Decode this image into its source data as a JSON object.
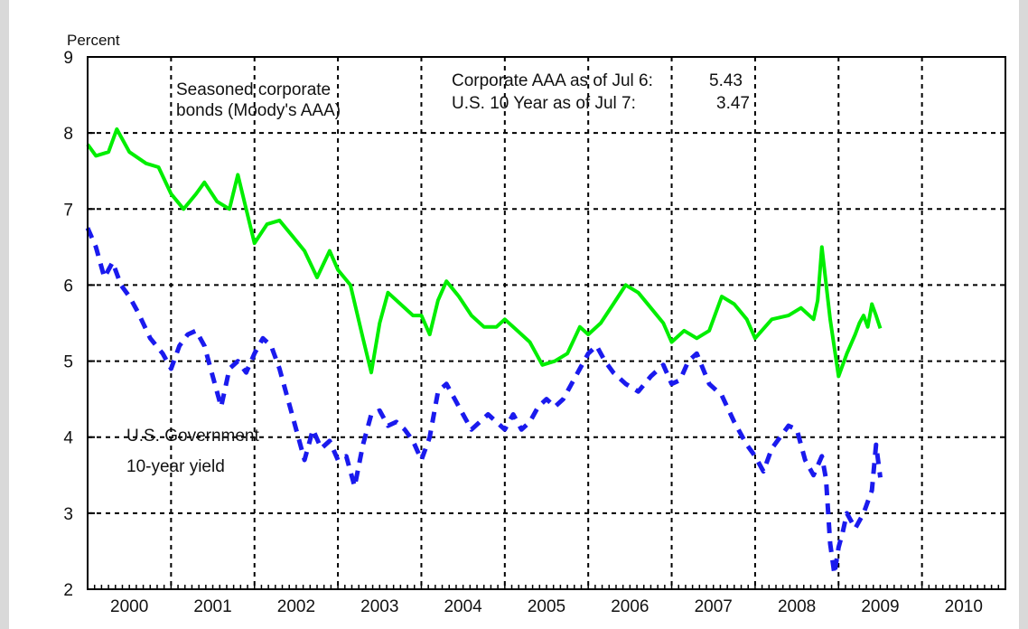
{
  "chart_data": {
    "type": "line",
    "ylabel": "Percent",
    "ylim": [
      2,
      9
    ],
    "yticks": [
      2,
      3,
      4,
      5,
      6,
      7,
      8,
      9
    ],
    "xlim": [
      2000,
      2011
    ],
    "xtick_labels": [
      "2000",
      "2001",
      "2002",
      "2003",
      "2004",
      "2005",
      "2006",
      "2007",
      "2008",
      "2009",
      "2010"
    ],
    "grid": true,
    "annotations": {
      "corp_note_line1": "Seasoned corporate",
      "corp_note_line2": "bonds (Moody's AAA)",
      "gov_note_line1": "U.S. Government",
      "gov_note_line2": "10-year yield",
      "corp_asof_label": "Corporate AAA as of Jul 6:",
      "corp_asof_value": "5.43",
      "gov_asof_label": "U.S. 10 Year as of Jul 7:",
      "gov_asof_value": "3.47"
    },
    "series": [
      {
        "color": "#00ee00",
        "style": "solid",
        "x": [
          2000.0,
          2000.1,
          2000.25,
          2000.35,
          2000.5,
          2000.7,
          2000.85,
          2001.0,
          2001.15,
          2001.3,
          2001.4,
          2001.55,
          2001.7,
          2001.8,
          2001.9,
          2002.0,
          2002.15,
          2002.3,
          2002.45,
          2002.6,
          2002.75,
          2002.9,
          2003.0,
          2003.15,
          2003.3,
          2003.4,
          2003.5,
          2003.6,
          2003.75,
          2003.9,
          2004.0,
          2004.1,
          2004.2,
          2004.3,
          2004.45,
          2004.6,
          2004.75,
          2004.9,
          2005.0,
          2005.15,
          2005.3,
          2005.45,
          2005.6,
          2005.75,
          2005.9,
          2006.0,
          2006.15,
          2006.3,
          2006.45,
          2006.6,
          2006.75,
          2006.9,
          2007.0,
          2007.15,
          2007.3,
          2007.45,
          2007.6,
          2007.75,
          2007.9,
          2008.0,
          2008.2,
          2008.4,
          2008.55,
          2008.7,
          2008.75,
          2008.8,
          2008.9,
          2009.0,
          2009.1,
          2009.2,
          2009.25,
          2009.3,
          2009.35,
          2009.4,
          2009.45,
          2009.5
        ],
        "values": [
          7.85,
          7.7,
          7.75,
          8.05,
          7.75,
          7.6,
          7.55,
          7.2,
          7.0,
          7.2,
          7.35,
          7.1,
          7.0,
          7.45,
          7.0,
          6.55,
          6.8,
          6.85,
          6.65,
          6.45,
          6.1,
          6.45,
          6.2,
          6.0,
          5.3,
          4.85,
          5.5,
          5.9,
          5.75,
          5.6,
          5.6,
          5.35,
          5.8,
          6.05,
          5.85,
          5.6,
          5.45,
          5.45,
          5.55,
          5.4,
          5.25,
          4.95,
          5.0,
          5.1,
          5.45,
          5.35,
          5.5,
          5.75,
          6.0,
          5.9,
          5.7,
          5.5,
          5.25,
          5.4,
          5.3,
          5.4,
          5.85,
          5.75,
          5.55,
          5.3,
          5.55,
          5.6,
          5.7,
          5.55,
          5.8,
          6.5,
          5.55,
          4.8,
          5.1,
          5.35,
          5.5,
          5.6,
          5.45,
          5.75,
          5.6,
          5.43
        ]
      },
      {
        "color": "#1a1aee",
        "style": "dashed",
        "x": [
          2000.0,
          2000.1,
          2000.2,
          2000.3,
          2000.4,
          2000.5,
          2000.6,
          2000.75,
          2000.9,
          2001.0,
          2001.1,
          2001.2,
          2001.3,
          2001.4,
          2001.5,
          2001.6,
          2001.7,
          2001.8,
          2001.9,
          2002.0,
          2002.1,
          2002.2,
          2002.3,
          2002.45,
          2002.6,
          2002.7,
          2002.8,
          2002.9,
          2003.0,
          2003.1,
          2003.2,
          2003.3,
          2003.4,
          2003.5,
          2003.6,
          2003.7,
          2003.8,
          2003.9,
          2004.0,
          2004.1,
          2004.2,
          2004.3,
          2004.4,
          2004.5,
          2004.6,
          2004.7,
          2004.8,
          2004.9,
          2005.0,
          2005.1,
          2005.2,
          2005.3,
          2005.4,
          2005.5,
          2005.6,
          2005.7,
          2005.8,
          2005.9,
          2006.0,
          2006.1,
          2006.2,
          2006.3,
          2006.45,
          2006.6,
          2006.75,
          2006.9,
          2007.0,
          2007.1,
          2007.2,
          2007.3,
          2007.45,
          2007.6,
          2007.75,
          2007.9,
          2008.0,
          2008.1,
          2008.2,
          2008.3,
          2008.4,
          2008.5,
          2008.6,
          2008.7,
          2008.8,
          2008.85,
          2008.9,
          2008.95,
          2009.0,
          2009.05,
          2009.1,
          2009.2,
          2009.3,
          2009.4,
          2009.45,
          2009.5
        ],
        "values": [
          6.75,
          6.5,
          6.1,
          6.3,
          6.0,
          5.85,
          5.65,
          5.3,
          5.1,
          4.9,
          5.2,
          5.35,
          5.4,
          5.2,
          4.8,
          4.4,
          4.9,
          5.0,
          4.85,
          5.1,
          5.3,
          5.2,
          4.9,
          4.3,
          3.7,
          4.1,
          3.85,
          3.95,
          3.7,
          3.75,
          3.35,
          3.9,
          4.3,
          4.35,
          4.15,
          4.2,
          4.1,
          3.95,
          3.7,
          4.0,
          4.6,
          4.7,
          4.5,
          4.3,
          4.1,
          4.2,
          4.3,
          4.2,
          4.1,
          4.3,
          4.1,
          4.2,
          4.4,
          4.5,
          4.4,
          4.5,
          4.7,
          4.9,
          5.1,
          5.2,
          5.0,
          4.85,
          4.7,
          4.6,
          4.8,
          4.95,
          4.7,
          4.75,
          5.0,
          5.1,
          4.7,
          4.55,
          4.2,
          3.9,
          3.75,
          3.55,
          3.85,
          4.0,
          4.15,
          4.1,
          3.7,
          3.5,
          3.75,
          3.45,
          2.6,
          2.2,
          2.55,
          2.75,
          3.0,
          2.8,
          3.0,
          3.3,
          3.9,
          3.47
        ]
      }
    ]
  }
}
